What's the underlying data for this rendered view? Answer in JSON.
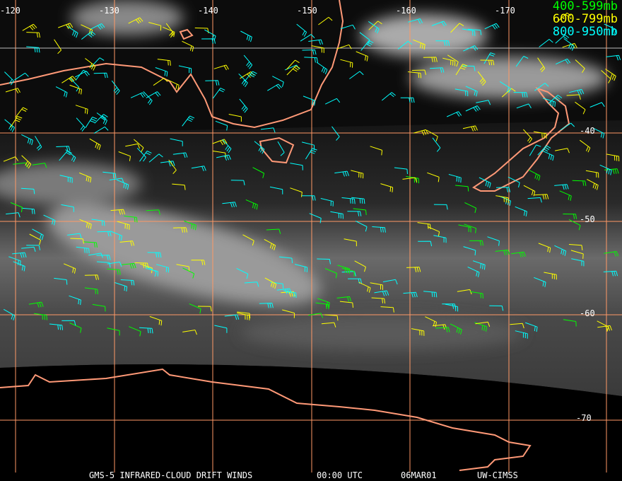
{
  "legend": [
    {
      "label": "400-599mb",
      "color": "#00ff00"
    },
    {
      "label": "600-799mb",
      "color": "#ffff00"
    },
    {
      "label": "800-950mb",
      "color": "#00ffff"
    }
  ],
  "longitude_labels": [
    "-120",
    "-130",
    "-140",
    "-150",
    "-160",
    "-170"
  ],
  "latitude_labels": [
    "-40",
    "-50",
    "-60",
    "-70"
  ],
  "footer": {
    "product": "GMS-5 INFRARED-CLOUD DRIFT WINDS",
    "time": "00:00 UTC",
    "date": "06MAR01",
    "source": "UW-CIMSS"
  },
  "colors": {
    "grid": "#ff9966",
    "coastline": "#ff9977",
    "background": "#000000"
  }
}
